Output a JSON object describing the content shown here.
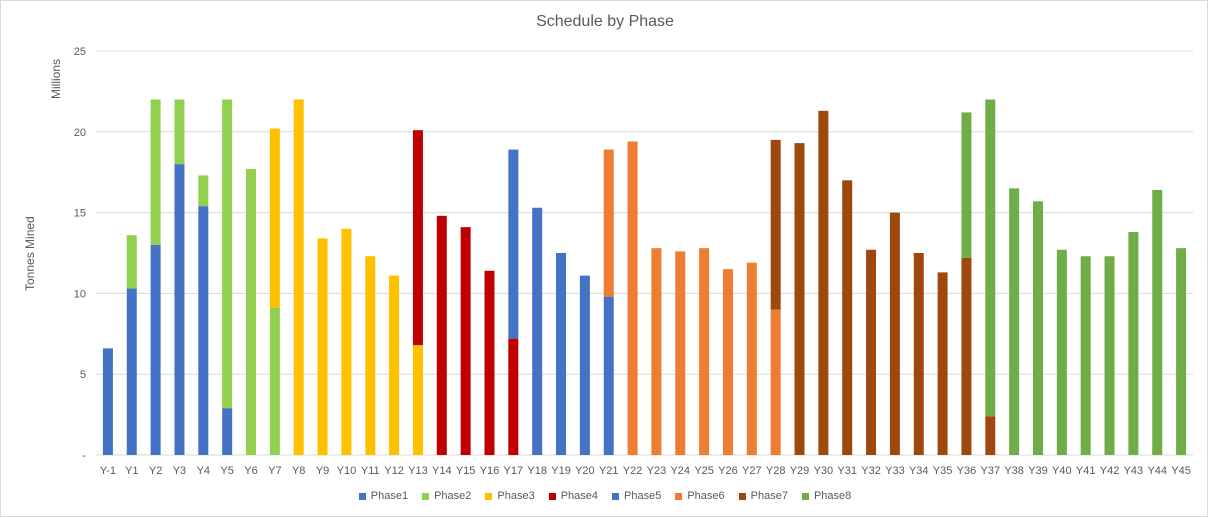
{
  "chart_data": {
    "type": "bar",
    "stacked": true,
    "title": "Schedule by Phase",
    "ylabel": "Tonnes Mined",
    "units_label": "Millions",
    "ylim": [
      0,
      25
    ],
    "yticks": [
      0,
      5,
      10,
      15,
      20,
      25
    ],
    "ytick_labels": [
      "-",
      "5",
      "10",
      "15",
      "20",
      "25"
    ],
    "grid": true,
    "legend_position": "bottom",
    "categories": [
      "Y-1",
      "Y1",
      "Y2",
      "Y3",
      "Y4",
      "Y5",
      "Y6",
      "Y7",
      "Y8",
      "Y9",
      "Y10",
      "Y11",
      "Y12",
      "Y13",
      "Y14",
      "Y15",
      "Y16",
      "Y17",
      "Y18",
      "Y19",
      "Y20",
      "Y21",
      "Y22",
      "Y23",
      "Y24",
      "Y25",
      "Y26",
      "Y27",
      "Y28",
      "Y29",
      "Y30",
      "Y31",
      "Y32",
      "Y33",
      "Y34",
      "Y35",
      "Y36",
      "Y37",
      "Y38",
      "Y39",
      "Y40",
      "Y41",
      "Y42",
      "Y43",
      "Y44",
      "Y45"
    ],
    "series": [
      {
        "name": "Phase1",
        "color": "#4472c4",
        "values": [
          6.6,
          10.3,
          13.0,
          18.0,
          15.4,
          2.9,
          0,
          0,
          0,
          0,
          0,
          0,
          0,
          0,
          0,
          0,
          0,
          0,
          0,
          0,
          0,
          0,
          0,
          0,
          0,
          0,
          0,
          0,
          0,
          0,
          0,
          0,
          0,
          0,
          0,
          0,
          0,
          0,
          0,
          0,
          0,
          0,
          0,
          0,
          0,
          0
        ]
      },
      {
        "name": "Phase2",
        "color": "#92d050",
        "values": [
          0,
          3.3,
          9.0,
          4.0,
          1.9,
          19.1,
          17.7,
          9.1,
          0,
          0,
          0,
          0,
          0,
          0,
          0,
          0,
          0,
          0,
          0,
          0,
          0,
          0,
          0,
          0,
          0,
          0,
          0,
          0,
          0,
          0,
          0,
          0,
          0,
          0,
          0,
          0,
          0,
          0,
          0,
          0,
          0,
          0,
          0,
          0,
          0,
          0
        ]
      },
      {
        "name": "Phase3",
        "color": "#ffc000",
        "values": [
          0,
          0,
          0,
          0,
          0,
          0,
          0,
          11.1,
          22.0,
          13.4,
          14.0,
          12.3,
          11.1,
          6.8,
          0,
          0,
          0,
          0,
          0,
          0,
          0,
          0,
          0,
          0,
          0,
          0,
          0,
          0,
          0,
          0,
          0,
          0,
          0,
          0,
          0,
          0,
          0,
          0,
          0,
          0,
          0,
          0,
          0,
          0,
          0,
          0
        ]
      },
      {
        "name": "Phase4",
        "color": "#c00000",
        "values": [
          0,
          0,
          0,
          0,
          0,
          0,
          0,
          0,
          0,
          0,
          0,
          0,
          0,
          13.3,
          14.8,
          14.1,
          11.4,
          7.2,
          0,
          0,
          0,
          0,
          0,
          0,
          0,
          0,
          0,
          0,
          0,
          0,
          0,
          0,
          0,
          0,
          0,
          0,
          0,
          0,
          0,
          0,
          0,
          0,
          0,
          0,
          0,
          0
        ]
      },
      {
        "name": "Phase5",
        "color": "#4472c4",
        "values": [
          0,
          0,
          0,
          0,
          0,
          0,
          0,
          0,
          0,
          0,
          0,
          0,
          0,
          0,
          0,
          0,
          0,
          11.7,
          15.3,
          12.5,
          11.1,
          9.8,
          0,
          0,
          0,
          0,
          0,
          0,
          0,
          0,
          0,
          0,
          0,
          0,
          0,
          0,
          0,
          0,
          0,
          0,
          0,
          0,
          0,
          0,
          0,
          0
        ]
      },
      {
        "name": "Phase6",
        "color": "#ed7d31",
        "values": [
          0,
          0,
          0,
          0,
          0,
          0,
          0,
          0,
          0,
          0,
          0,
          0,
          0,
          0,
          0,
          0,
          0,
          0,
          0,
          0,
          0,
          9.1,
          19.4,
          12.8,
          12.6,
          12.8,
          11.5,
          11.9,
          9.0,
          0,
          0,
          0,
          0,
          0,
          0,
          0,
          0,
          0,
          0,
          0,
          0,
          0,
          0,
          0,
          0,
          0
        ]
      },
      {
        "name": "Phase7",
        "color": "#9e480e",
        "values": [
          0,
          0,
          0,
          0,
          0,
          0,
          0,
          0,
          0,
          0,
          0,
          0,
          0,
          0,
          0,
          0,
          0,
          0,
          0,
          0,
          0,
          0,
          0,
          0,
          0,
          0,
          0,
          0,
          10.5,
          19.3,
          21.3,
          17.0,
          12.7,
          15.0,
          12.5,
          11.3,
          12.2,
          2.4,
          0,
          0,
          0,
          0,
          0,
          0,
          0,
          0
        ]
      },
      {
        "name": "Phase8",
        "color": "#70ad47",
        "values": [
          0,
          0,
          0,
          0,
          0,
          0,
          0,
          0,
          0,
          0,
          0,
          0,
          0,
          0,
          0,
          0,
          0,
          0,
          0,
          0,
          0,
          0,
          0,
          0,
          0,
          0,
          0,
          0,
          0,
          0,
          0,
          0,
          0,
          0,
          0,
          0,
          9.0,
          19.6,
          16.5,
          15.7,
          12.7,
          12.3,
          12.3,
          13.8,
          16.4,
          12.8
        ]
      }
    ]
  }
}
